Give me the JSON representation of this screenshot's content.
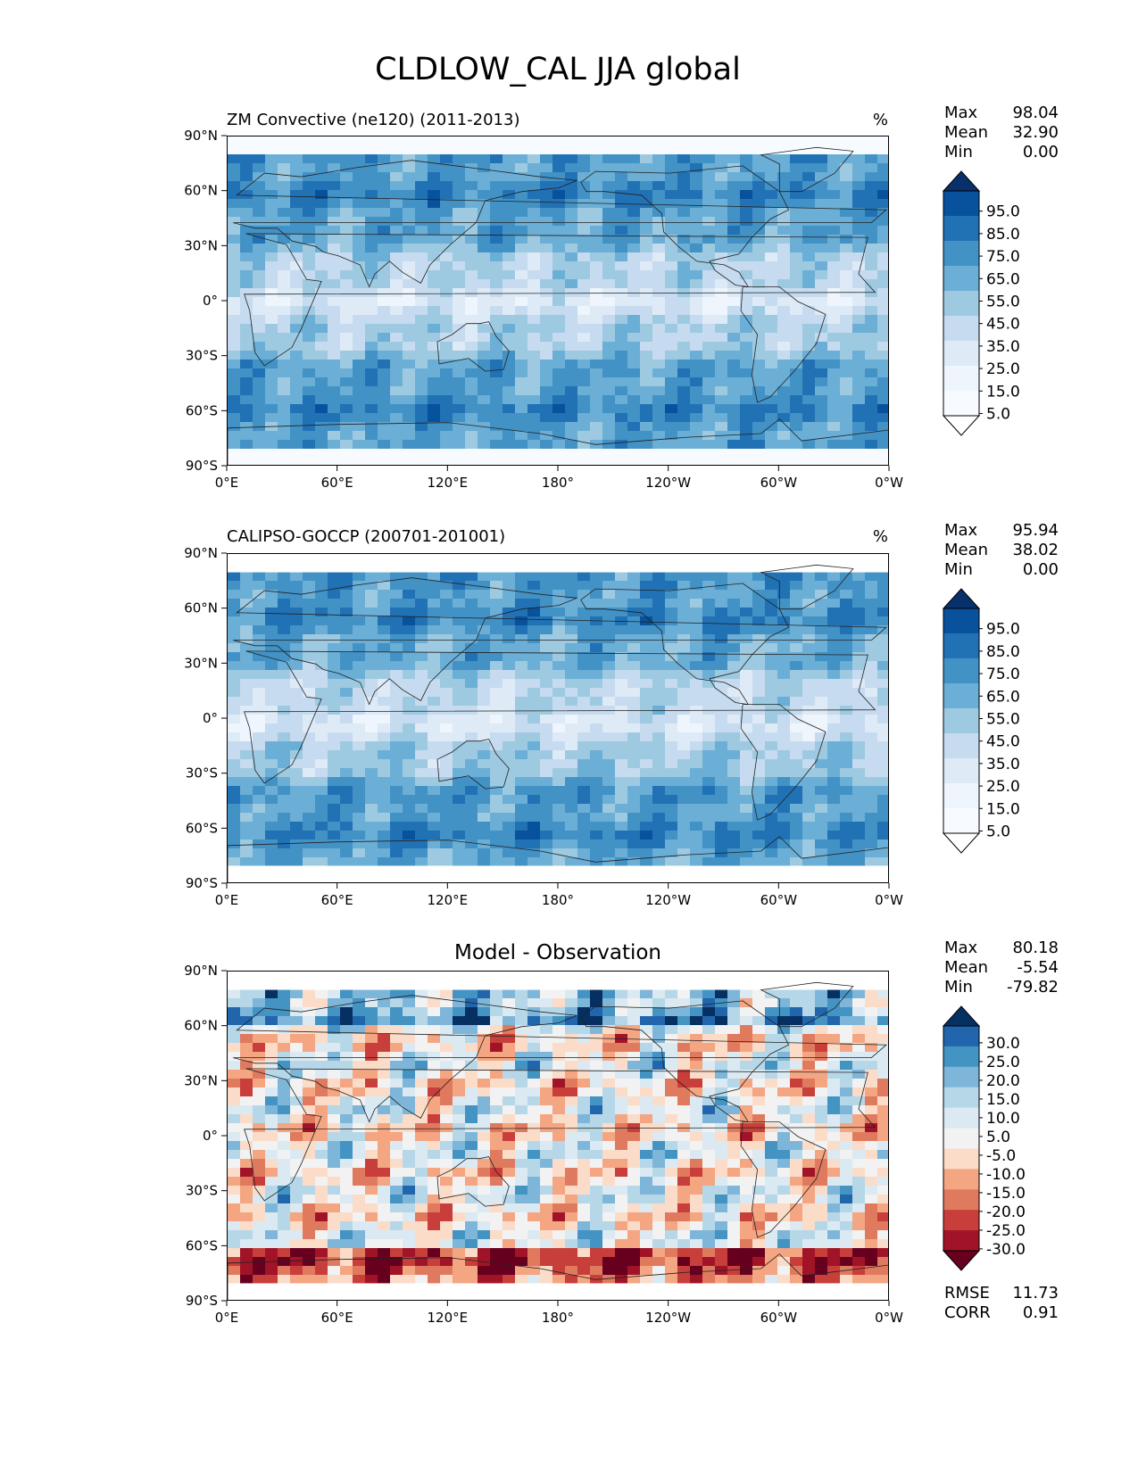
{
  "figure": {
    "title": "CLDLOW_CAL JJA global"
  },
  "chart_data": [
    {
      "type": "heatmap",
      "title": "ZM Convective (ne120) (2011-2013)",
      "units": "%",
      "stats": [
        {
          "label": "Max",
          "value": "98.04"
        },
        {
          "label": "Mean",
          "value": "32.90"
        },
        {
          "label": "Min",
          "value": "0.00"
        }
      ],
      "colorbar": {
        "labels": [
          "95.0",
          "85.0",
          "75.0",
          "65.0",
          "55.0",
          "45.0",
          "35.0",
          "25.0",
          "15.0",
          "5.0"
        ],
        "colors": [
          "#08306b",
          "#08519c",
          "#2171b5",
          "#4292c6",
          "#6baed6",
          "#9ecae1",
          "#c6dbef",
          "#deebf7",
          "#eef5fc",
          "#f7fbff",
          "#ffffff"
        ]
      },
      "x_ticks": [
        "0°E",
        "60°E",
        "120°E",
        "180°",
        "120°W",
        "60°W",
        "0°W"
      ],
      "y_ticks": [
        "90°N",
        "60°N",
        "30°N",
        "0°",
        "30°S",
        "60°S",
        "90°S"
      ]
    },
    {
      "type": "heatmap",
      "title": "CALIPSO-GOCCP (200701-201001)",
      "units": "%",
      "stats": [
        {
          "label": "Max",
          "value": "95.94"
        },
        {
          "label": "Mean",
          "value": "38.02"
        },
        {
          "label": "Min",
          "value": "0.00"
        }
      ],
      "colorbar": {
        "labels": [
          "95.0",
          "85.0",
          "75.0",
          "65.0",
          "55.0",
          "45.0",
          "35.0",
          "25.0",
          "15.0",
          "5.0"
        ],
        "colors": [
          "#08306b",
          "#08519c",
          "#2171b5",
          "#4292c6",
          "#6baed6",
          "#9ecae1",
          "#c6dbef",
          "#deebf7",
          "#eef5fc",
          "#f7fbff",
          "#ffffff"
        ]
      },
      "x_ticks": [
        "0°E",
        "60°E",
        "120°E",
        "180°",
        "120°W",
        "60°W",
        "0°W"
      ],
      "y_ticks": [
        "90°N",
        "60°N",
        "30°N",
        "0°",
        "30°S",
        "60°S",
        "90°S"
      ]
    },
    {
      "type": "heatmap",
      "title": "Model - Observation",
      "stats": [
        {
          "label": "Max",
          "value": "80.18"
        },
        {
          "label": "Mean",
          "value": "-5.54"
        },
        {
          "label": "Min",
          "value": "-79.82"
        }
      ],
      "metrics": [
        {
          "label": "RMSE",
          "value": "11.73"
        },
        {
          "label": "CORR",
          "value": "0.91"
        }
      ],
      "colorbar": {
        "labels": [
          "30.0",
          "25.0",
          "20.0",
          "15.0",
          "10.0",
          "5.0",
          "-5.0",
          "-10.0",
          "-15.0",
          "-20.0",
          "-25.0",
          "-30.0"
        ],
        "colors": [
          "#053061",
          "#2166ac",
          "#4393c3",
          "#7eb6d9",
          "#b6d7e8",
          "#dbeaf2",
          "#f2f2f2",
          "#fbdcc9",
          "#f4a582",
          "#e07a5f",
          "#c73e3a",
          "#a11428",
          "#67001f"
        ]
      },
      "x_ticks": [
        "0°E",
        "60°E",
        "120°E",
        "180°",
        "120°W",
        "60°W",
        "0°W"
      ],
      "y_ticks": [
        "90°N",
        "60°N",
        "30°N",
        "0°",
        "30°S",
        "60°S",
        "90°S"
      ]
    }
  ]
}
